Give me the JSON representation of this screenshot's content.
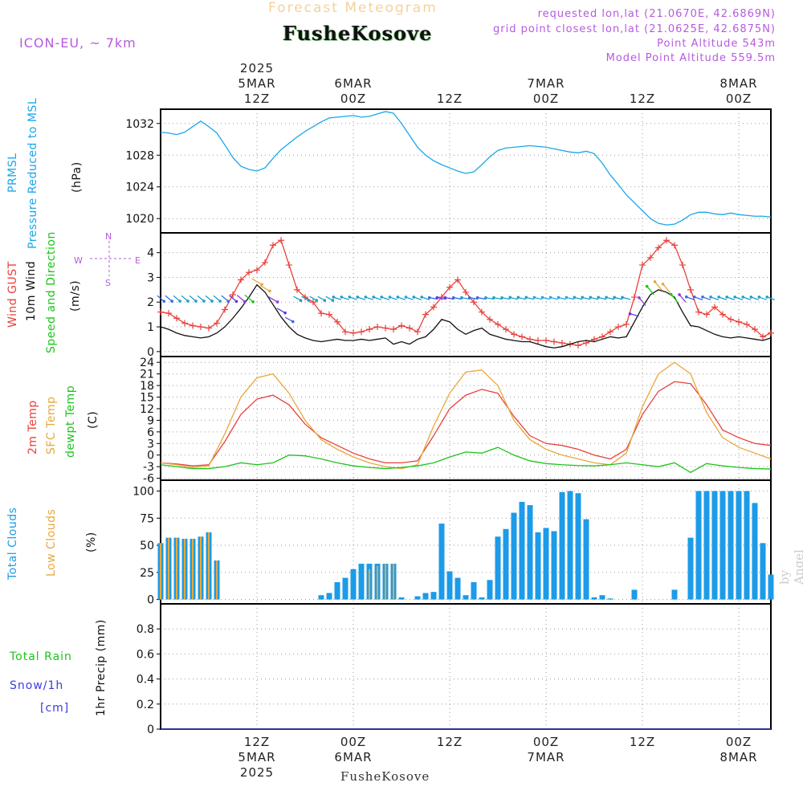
{
  "header": {
    "title": "Forecast Meteogram",
    "station": "FusheKosove",
    "model": "ICON-EU, ~ 7km",
    "info_lines": [
      "requested lon,lat (21.0670E, 42.6869N)",
      "grid point closest lon,lat (21.0625E, 42.6875N)",
      "Point Altitude 543m",
      "Model Point Altitude 559.5m"
    ]
  },
  "time_axis": {
    "top_labels": [
      {
        "t": 12,
        "lines": [
          "2025",
          "5MAR",
          "12Z"
        ]
      },
      {
        "t": 24,
        "lines": [
          "6MAR",
          "00Z"
        ]
      },
      {
        "t": 36,
        "lines": [
          "12Z"
        ]
      },
      {
        "t": 48,
        "lines": [
          "7MAR",
          "00Z"
        ]
      },
      {
        "t": 60,
        "lines": [
          "12Z"
        ]
      },
      {
        "t": 72,
        "lines": [
          "8MAR",
          "00Z"
        ]
      }
    ],
    "bottom_labels": [
      {
        "t": 12,
        "lines": [
          "12Z",
          "5MAR",
          "2025"
        ]
      },
      {
        "t": 24,
        "lines": [
          "00Z",
          "6MAR"
        ]
      },
      {
        "t": 36,
        "lines": [
          "12Z"
        ]
      },
      {
        "t": 48,
        "lines": [
          "00Z",
          "7MAR"
        ]
      },
      {
        "t": 60,
        "lines": [
          "12Z"
        ]
      },
      {
        "t": 72,
        "lines": [
          "00Z",
          "8MAR"
        ]
      }
    ],
    "footer_station": "FusheKosove"
  },
  "panels": {
    "pressure": {
      "labels": [
        "PRMSL",
        "Pressure Reduced to MSL"
      ],
      "unit": "(hPa)"
    },
    "wind": {
      "labels": [
        "Wind GUST",
        "10m Wind",
        "Speed and Direction"
      ],
      "unit": "(m/s)",
      "compass": {
        "n": "N",
        "s": "S",
        "w": "W",
        "e": "E"
      }
    },
    "temp": {
      "labels": [
        "2m Temp",
        "SFC Temp",
        "dewpt Temp"
      ],
      "unit": "(C)"
    },
    "clouds": {
      "labels": [
        "Total Clouds",
        "Low Clouds"
      ],
      "unit": "(%)"
    },
    "precip": {
      "labels": [
        "Total  Rain",
        "Snow/1h",
        "[cm]"
      ],
      "unit": "1hr Precip (mm)"
    }
  },
  "watermark": "by Angel",
  "colors": {
    "pressure": "#1aa7e8",
    "gust": "#e8413c",
    "wind": "#111111",
    "temp2m": "#e8413c",
    "sfc": "#e8a83a",
    "dewpt": "#1cc41c",
    "total_cloud": "#1c9be8",
    "low_cloud": "#e8a83a",
    "rain": "#1cc41c",
    "snow": "#3a3ae8",
    "compass": "#b65ae0"
  },
  "chart_data": [
    {
      "type": "line",
      "title": "PRMSL Pressure Reduced to MSL",
      "ylabel": "(hPa)",
      "ylim": [
        1018.2,
        1033.8
      ],
      "yticks": [
        1020,
        1024,
        1028,
        1032
      ],
      "x": [
        0,
        1,
        2,
        3,
        4,
        5,
        6,
        7,
        8,
        9,
        10,
        11,
        12,
        13,
        14,
        15,
        16,
        17,
        18,
        19,
        20,
        21,
        22,
        23,
        24,
        25,
        26,
        27,
        28,
        29,
        30,
        31,
        32,
        33,
        34,
        35,
        36,
        37,
        38,
        39,
        40,
        41,
        42,
        43,
        44,
        45,
        46,
        47,
        48,
        49,
        50,
        51,
        52,
        53,
        54,
        55,
        56,
        57,
        58,
        59,
        60,
        61,
        62,
        63,
        64,
        65,
        66,
        67,
        68,
        69,
        70,
        71,
        72,
        73,
        74,
        75,
        76
      ],
      "series": [
        {
          "name": "PRMSL",
          "values": [
            1030.9,
            1030.8,
            1030.6,
            1030.9,
            1031.6,
            1032.3,
            1031.6,
            1030.8,
            1029.3,
            1027.7,
            1026.6,
            1026.2,
            1026.0,
            1026.4,
            1027.6,
            1028.7,
            1029.5,
            1030.3,
            1031.0,
            1031.6,
            1032.2,
            1032.7,
            1032.8,
            1032.9,
            1033.0,
            1032.8,
            1032.9,
            1033.2,
            1033.5,
            1033.3,
            1032.0,
            1030.5,
            1029.0,
            1028.0,
            1027.3,
            1026.8,
            1026.4,
            1026.0,
            1025.7,
            1025.9,
            1026.8,
            1027.8,
            1028.6,
            1028.9,
            1029.0,
            1029.1,
            1029.2,
            1029.1,
            1029.0,
            1028.8,
            1028.6,
            1028.4,
            1028.3,
            1028.5,
            1028.2,
            1027.0,
            1025.5,
            1024.3,
            1023.0,
            1022.0,
            1021.0,
            1020.0,
            1019.4,
            1019.2,
            1019.3,
            1019.8,
            1020.5,
            1020.8,
            1020.8,
            1020.6,
            1020.5,
            1020.7,
            1020.5,
            1020.4,
            1020.3,
            1020.3,
            1020.2
          ]
        }
      ]
    },
    {
      "type": "line",
      "title": "Wind GUST / 10m Wind Speed and Direction",
      "ylabel": "(m/s)",
      "ylim": [
        -0.2,
        4.8
      ],
      "yticks": [
        0,
        1,
        2,
        3,
        4
      ],
      "x": [
        0,
        1,
        2,
        3,
        4,
        5,
        6,
        7,
        8,
        9,
        10,
        11,
        12,
        13,
        14,
        15,
        16,
        17,
        18,
        19,
        20,
        21,
        22,
        23,
        24,
        25,
        26,
        27,
        28,
        29,
        30,
        31,
        32,
        33,
        34,
        35,
        36,
        37,
        38,
        39,
        40,
        41,
        42,
        43,
        44,
        45,
        46,
        47,
        48,
        49,
        50,
        51,
        52,
        53,
        54,
        55,
        56,
        57,
        58,
        59,
        60,
        61,
        62,
        63,
        64,
        65,
        66,
        67,
        68,
        69,
        70,
        71,
        72,
        73,
        74,
        75,
        76
      ],
      "series": [
        {
          "name": "Wind GUST",
          "values": [
            1.6,
            1.55,
            1.35,
            1.15,
            1.05,
            1.0,
            0.95,
            1.15,
            1.7,
            2.3,
            2.9,
            3.2,
            3.3,
            3.6,
            4.3,
            4.5,
            3.5,
            2.5,
            2.2,
            2.0,
            1.55,
            1.5,
            1.2,
            0.8,
            0.75,
            0.8,
            0.9,
            1.0,
            0.95,
            0.9,
            1.05,
            0.95,
            0.8,
            1.5,
            1.8,
            2.2,
            2.6,
            2.9,
            2.4,
            2.0,
            1.6,
            1.3,
            1.1,
            0.9,
            0.7,
            0.6,
            0.5,
            0.45,
            0.45,
            0.4,
            0.35,
            0.3,
            0.25,
            0.35,
            0.5,
            0.6,
            0.8,
            1.0,
            1.1,
            2.2,
            3.5,
            3.8,
            4.2,
            4.5,
            4.3,
            3.5,
            2.5,
            1.6,
            1.5,
            1.8,
            1.5,
            1.3,
            1.2,
            1.1,
            0.9,
            0.6,
            0.75
          ]
        },
        {
          "name": "10m Wind",
          "values": [
            1.0,
            0.9,
            0.75,
            0.65,
            0.6,
            0.55,
            0.6,
            0.75,
            1.0,
            1.35,
            1.75,
            2.2,
            2.7,
            2.4,
            1.9,
            1.4,
            1.0,
            0.7,
            0.55,
            0.45,
            0.4,
            0.45,
            0.5,
            0.45,
            0.45,
            0.5,
            0.45,
            0.5,
            0.55,
            0.3,
            0.4,
            0.3,
            0.5,
            0.6,
            0.9,
            1.3,
            1.2,
            0.9,
            0.7,
            0.85,
            0.95,
            0.7,
            0.6,
            0.5,
            0.45,
            0.4,
            0.4,
            0.3,
            0.2,
            0.15,
            0.2,
            0.3,
            0.4,
            0.45,
            0.4,
            0.5,
            0.6,
            0.55,
            0.6,
            1.2,
            1.8,
            2.3,
            2.5,
            2.4,
            2.2,
            1.6,
            1.05,
            1.0,
            0.85,
            0.7,
            0.6,
            0.55,
            0.6,
            0.55,
            0.5,
            0.45,
            0.55
          ]
        }
      ]
    },
    {
      "type": "line",
      "title": "2m Temp / SFC Temp / dewpt Temp",
      "ylabel": "(C)",
      "ylim": [
        -6.5,
        25.5
      ],
      "yticks": [
        -6,
        -3,
        0,
        3,
        6,
        9,
        12,
        15,
        18,
        21,
        24
      ],
      "x": [
        0,
        2,
        4,
        6,
        8,
        10,
        12,
        14,
        16,
        18,
        20,
        22,
        24,
        26,
        28,
        30,
        32,
        34,
        36,
        38,
        40,
        42,
        44,
        46,
        48,
        50,
        52,
        54,
        56,
        58,
        60,
        62,
        64,
        66,
        68,
        70,
        72,
        74,
        76
      ],
      "series": [
        {
          "name": "2m Temp",
          "values": [
            -2.0,
            -2.3,
            -2.8,
            -2.5,
            3.5,
            10.5,
            14.5,
            15.5,
            13.0,
            8.0,
            4.5,
            2.5,
            0.5,
            -1.0,
            -2.0,
            -2.0,
            -1.5,
            5.0,
            12.0,
            15.5,
            17.0,
            16.0,
            10.0,
            5.0,
            3.0,
            2.5,
            1.5,
            0.0,
            -1.0,
            1.5,
            10.5,
            16.5,
            19.0,
            18.5,
            13.0,
            6.5,
            4.5,
            3.0,
            2.5
          ]
        },
        {
          "name": "SFC Temp",
          "values": [
            -2.0,
            -2.5,
            -3.2,
            -2.8,
            5.5,
            15.0,
            20.0,
            21.0,
            16.0,
            9.0,
            4.0,
            1.5,
            -0.5,
            -2.0,
            -3.0,
            -3.5,
            -2.5,
            7.5,
            16.0,
            21.5,
            22.0,
            18.0,
            9.0,
            4.0,
            1.5,
            0.0,
            -1.0,
            -2.0,
            -2.5,
            0.5,
            12.5,
            21.0,
            24.0,
            21.0,
            11.0,
            4.5,
            2.0,
            0.5,
            -1.0
          ]
        },
        {
          "name": "dewpt Temp",
          "values": [
            -2.5,
            -3.0,
            -3.5,
            -3.5,
            -3.0,
            -2.0,
            -2.5,
            -2.0,
            0.0,
            -0.2,
            -1.0,
            -2.0,
            -2.8,
            -3.2,
            -3.5,
            -3.2,
            -2.8,
            -2.0,
            -0.5,
            0.8,
            0.5,
            2.0,
            0.0,
            -1.5,
            -2.2,
            -2.5,
            -2.7,
            -2.8,
            -2.5,
            -2.0,
            -2.5,
            -3.0,
            -2.0,
            -4.5,
            -2.2,
            -2.8,
            -3.2,
            -3.5,
            -3.6
          ]
        }
      ]
    },
    {
      "type": "bar",
      "title": "Total Clouds / Low Clouds",
      "ylabel": "(%)",
      "ylim": [
        -4,
        110
      ],
      "yticks": [
        0,
        25,
        50,
        75,
        100
      ],
      "categories": [
        0,
        1,
        2,
        3,
        4,
        5,
        6,
        7,
        8,
        9,
        10,
        11,
        12,
        13,
        14,
        15,
        16,
        17,
        18,
        19,
        20,
        21,
        22,
        23,
        24,
        25,
        26,
        27,
        28,
        29,
        30,
        31,
        32,
        33,
        34,
        35,
        36,
        37,
        38,
        39,
        40,
        41,
        42,
        43,
        44,
        45,
        46,
        47,
        48,
        49,
        50,
        51,
        52,
        53,
        54,
        55,
        56,
        57,
        58,
        59,
        60,
        61,
        62,
        63,
        64,
        65,
        66,
        67,
        68,
        69,
        70,
        71,
        72,
        73,
        74,
        75,
        76
      ],
      "series": [
        {
          "name": "Total Clouds",
          "values": [
            52,
            57,
            57,
            56,
            56,
            58,
            62,
            36,
            0,
            0,
            0,
            0,
            0,
            0,
            0,
            0,
            0,
            0,
            0,
            0,
            4,
            6,
            16,
            20,
            28,
            33,
            33,
            33,
            33,
            33,
            2,
            0,
            3,
            6,
            7,
            70,
            26,
            20,
            4,
            16,
            2,
            18,
            58,
            65,
            80,
            90,
            87,
            62,
            66,
            63,
            99,
            100,
            98,
            74,
            2,
            4,
            1,
            0,
            0,
            9,
            0,
            0,
            0,
            0,
            9,
            0,
            57,
            100,
            100,
            100,
            100,
            100,
            100,
            100,
            89,
            52,
            23
          ]
        },
        {
          "name": "Low Clouds",
          "values": [
            52,
            57,
            57,
            56,
            56,
            58,
            62,
            36,
            0,
            0,
            0,
            0,
            0,
            0,
            0,
            0,
            0,
            0,
            0,
            0,
            0,
            0,
            0,
            0,
            0,
            0,
            28,
            31,
            33,
            33,
            0,
            0,
            0,
            0,
            0,
            0,
            0,
            0,
            0,
            0,
            0,
            0,
            0,
            0,
            0,
            0,
            0,
            0,
            0,
            0,
            0,
            0,
            0,
            0,
            0,
            0,
            0,
            0,
            0,
            0,
            0,
            0,
            0,
            0,
            0,
            0,
            0,
            0,
            0,
            0,
            0,
            0,
            0,
            0,
            0,
            0,
            0
          ]
        }
      ]
    },
    {
      "type": "line",
      "title": "1hr Precip",
      "ylabel": "1hr Precip (mm)",
      "ylim": [
        0,
        1.0
      ],
      "yticks": [
        0,
        0.2,
        0.4,
        0.6,
        0.8
      ],
      "x": [
        0,
        76
      ],
      "series": [
        {
          "name": "Total Rain",
          "values": [
            0,
            0
          ]
        },
        {
          "name": "Snow/1h",
          "values": [
            0,
            0
          ]
        }
      ]
    }
  ]
}
